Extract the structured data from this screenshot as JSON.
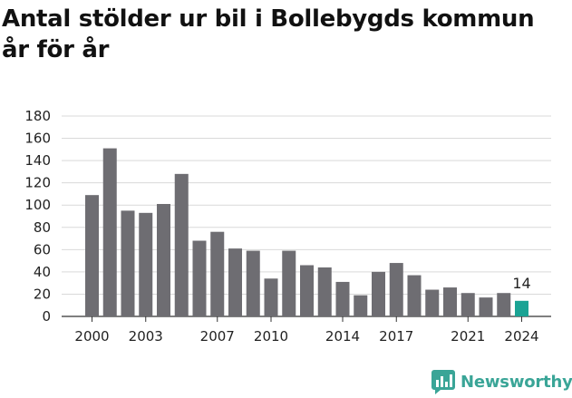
{
  "title": "Antal stölder ur bil i Bollebygds kommun år för år",
  "brand": {
    "name": "Newsworthy",
    "color": "#3aa597"
  },
  "chart_data": {
    "type": "bar",
    "title": "Antal stölder ur bil i Bollebygds kommun år för år",
    "xlabel": "",
    "ylabel": "",
    "ylim": [
      0,
      180
    ],
    "yticks": [
      "0",
      "20",
      "40",
      "60",
      "80",
      "100",
      "120",
      "140",
      "160",
      "180"
    ],
    "xtick_labels": [
      "2000",
      "2003",
      "2007",
      "2010",
      "2014",
      "2017",
      "2021",
      "2024"
    ],
    "grid": true,
    "bar_color": "#6e6d72",
    "highlight_color": "#1aa394",
    "categories": [
      "2000",
      "2001",
      "2002",
      "2003",
      "2004",
      "2005",
      "2006",
      "2007",
      "2008",
      "2009",
      "2010",
      "2011",
      "2012",
      "2013",
      "2014",
      "2015",
      "2016",
      "2017",
      "2018",
      "2019",
      "2020",
      "2021",
      "2022",
      "2023",
      "2024"
    ],
    "values": [
      109,
      151,
      95,
      93,
      101,
      128,
      68,
      76,
      61,
      59,
      34,
      59,
      46,
      44,
      31,
      19,
      40,
      48,
      37,
      24,
      26,
      21,
      17,
      21,
      14
    ],
    "highlight_index": 24,
    "data_labels": [
      {
        "category": "2024",
        "text": "14"
      }
    ]
  }
}
